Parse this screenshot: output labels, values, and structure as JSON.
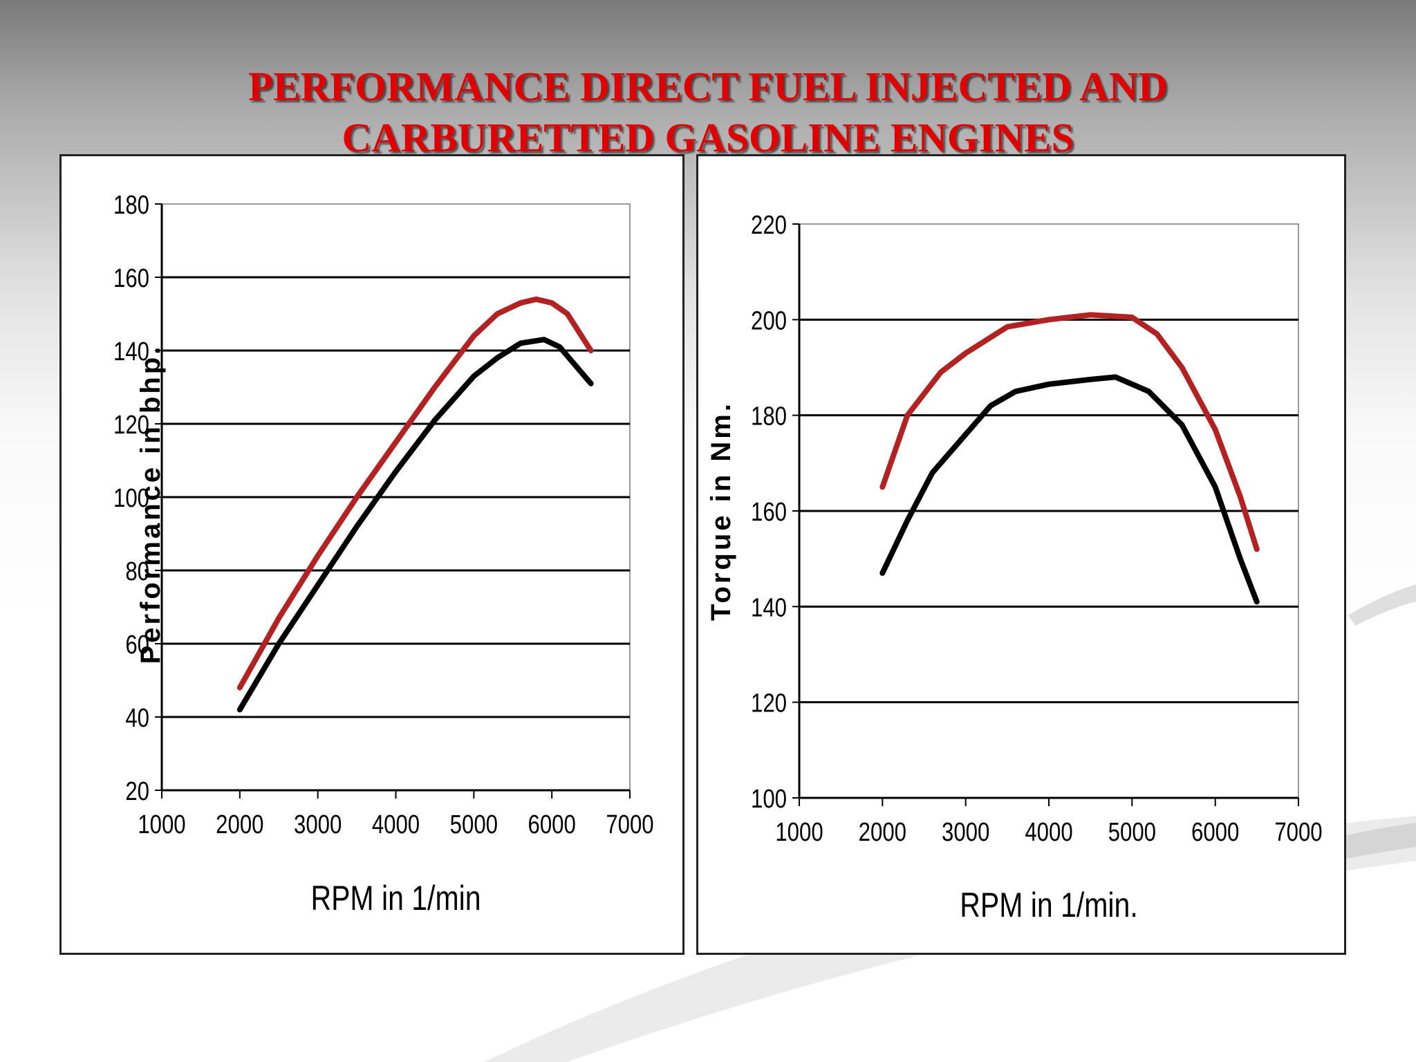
{
  "title": {
    "line1": "PERFORMANCE DIRECT FUEL INJECTED AND",
    "line2": "CARBURETTED GASOLINE ENGINES"
  },
  "colors": {
    "title": "#e00000",
    "injected_series": "#b22222",
    "carburetted_series": "#000000",
    "gridline": "#000000"
  },
  "chart_data": [
    {
      "type": "line",
      "xlabel": "RPM in 1/min",
      "ylabel": "Performance in bhp.",
      "xlim": [
        1000,
        7000
      ],
      "ylim": [
        20,
        180
      ],
      "xticks": [
        1000,
        2000,
        3000,
        4000,
        5000,
        6000,
        7000
      ],
      "yticks": [
        20,
        40,
        60,
        80,
        100,
        120,
        140,
        160,
        180
      ],
      "grid": "horizontal",
      "series": [
        {
          "color": "#b22222",
          "x": [
            2000,
            2500,
            3000,
            3500,
            4000,
            4500,
            5000,
            5300,
            5600,
            5800,
            6000,
            6200,
            6500
          ],
          "y": [
            48,
            67,
            84,
            100,
            115,
            130,
            144,
            150,
            153,
            154,
            153,
            150,
            140
          ]
        },
        {
          "color": "#000000",
          "x": [
            2000,
            2500,
            3000,
            3500,
            4000,
            4500,
            5000,
            5300,
            5600,
            5900,
            6100,
            6300,
            6500
          ],
          "y": [
            42,
            60,
            76,
            92,
            107,
            121,
            133,
            138,
            142,
            143,
            141,
            136,
            131
          ]
        }
      ]
    },
    {
      "type": "line",
      "xlabel": "RPM in 1/min.",
      "ylabel": "Torque in Nm.",
      "xlim": [
        1000,
        7000
      ],
      "ylim": [
        100,
        220
      ],
      "xticks": [
        1000,
        2000,
        3000,
        4000,
        5000,
        6000,
        7000
      ],
      "yticks": [
        100,
        120,
        140,
        160,
        180,
        200,
        220
      ],
      "grid": "horizontal",
      "series": [
        {
          "color": "#b22222",
          "x": [
            2000,
            2300,
            2700,
            3000,
            3500,
            4000,
            4500,
            5000,
            5300,
            5600,
            6000,
            6300,
            6500
          ],
          "y": [
            165,
            180,
            189,
            193,
            198.5,
            200,
            201,
            200.5,
            197,
            190,
            177,
            163,
            152
          ]
        },
        {
          "color": "#000000",
          "x": [
            2000,
            2300,
            2600,
            3000,
            3300,
            3600,
            4000,
            4500,
            4800,
            5200,
            5600,
            6000,
            6300,
            6500
          ],
          "y": [
            147,
            158,
            168,
            176,
            182,
            185,
            186.5,
            187.5,
            188,
            185,
            178,
            165,
            150,
            141
          ]
        }
      ]
    }
  ]
}
